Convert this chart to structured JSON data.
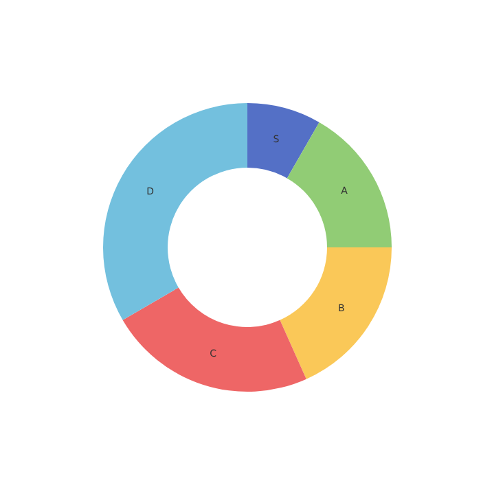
{
  "chart_data": {
    "type": "donut",
    "categories": [
      "S",
      "A",
      "B",
      "C",
      "D"
    ],
    "values": [
      8.3,
      16.7,
      18.3,
      23.3,
      33.4
    ],
    "colors": [
      "#5470c6",
      "#91cc75",
      "#fac858",
      "#ee6666",
      "#73c0de"
    ],
    "legend": false
  }
}
